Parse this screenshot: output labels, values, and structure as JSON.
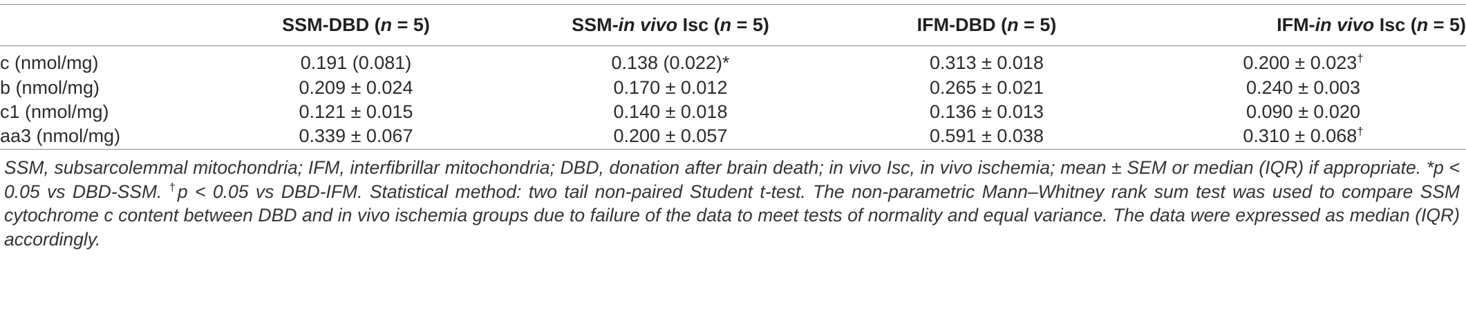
{
  "table": {
    "headers": [
      {
        "pre": "",
        "italic": "",
        "post": "",
        "n": ""
      },
      {
        "pre": "SSM-DBD (",
        "italic": "",
        "post": "",
        "n": "n = 5)"
      },
      {
        "pre": "SSM-",
        "italic": "in vivo",
        "post": " Isc (",
        "n": "n = 5)"
      },
      {
        "pre": "IFM-DBD (",
        "italic": "",
        "post": "",
        "n": "n = 5)"
      },
      {
        "pre": "IFM-",
        "italic": "in vivo",
        "post": " Isc (",
        "n": "n = 5)"
      }
    ],
    "rows": [
      {
        "label": "c (nmol/mg)",
        "cells": [
          {
            "v": "0.191 (0.081)",
            "m": ""
          },
          {
            "v": "0.138 (0.022)*",
            "m": ""
          },
          {
            "v": "0.313 ± 0.018",
            "m": ""
          },
          {
            "v": "0.200 ± 0.023",
            "m": "†"
          }
        ]
      },
      {
        "label": "b (nmol/mg)",
        "cells": [
          {
            "v": "0.209 ± 0.024",
            "m": ""
          },
          {
            "v": "0.170 ± 0.012",
            "m": ""
          },
          {
            "v": "0.265 ± 0.021",
            "m": ""
          },
          {
            "v": "0.240 ± 0.003",
            "m": ""
          }
        ]
      },
      {
        "label": "c1 (nmol/mg)",
        "cells": [
          {
            "v": "0.121 ± 0.015",
            "m": ""
          },
          {
            "v": "0.140 ± 0.018",
            "m": ""
          },
          {
            "v": "0.136 ± 0.013",
            "m": ""
          },
          {
            "v": "0.090 ± 0.020",
            "m": ""
          }
        ]
      },
      {
        "label": "aa3 (nmol/mg)",
        "cells": [
          {
            "v": "0.339 ± 0.067",
            "m": ""
          },
          {
            "v": "0.200 ± 0.057",
            "m": ""
          },
          {
            "v": "0.591 ± 0.038",
            "m": ""
          },
          {
            "v": "0.310 ± 0.068",
            "m": "†"
          }
        ]
      }
    ]
  },
  "footnote": {
    "part1": "SSM, subsarcolemmal mitochondria; IFM, interfibrillar mitochondria; DBD, donation after brain death; in vivo Isc, in vivo ischemia; mean ± SEM or median (IQR) if appropriate. *p < 0.05 vs DBD-SSM. ",
    "dagger": "†",
    "part2": "p < 0.05 vs DBD-IFM. Statistical method: two tail non-paired Student t-test. The non-parametric Mann–Whitney rank sum test was used to compare SSM cytochrome c content between DBD and in vivo ischemia groups due to failure of the data to meet tests of normality and equal variance. The data were expressed as median (IQR) accordingly."
  }
}
